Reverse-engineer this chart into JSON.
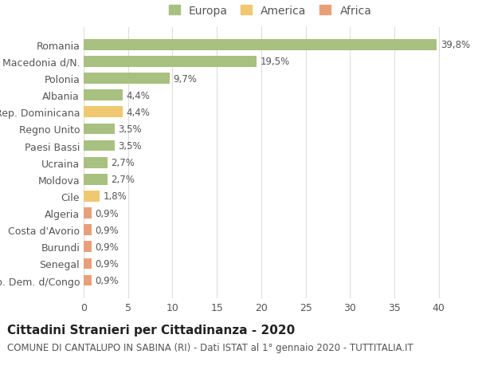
{
  "categories": [
    "Rep. Dem. d/Congo",
    "Senegal",
    "Burundi",
    "Costa d'Avorio",
    "Algeria",
    "Cile",
    "Moldova",
    "Ucraina",
    "Paesi Bassi",
    "Regno Unito",
    "Rep. Dominicana",
    "Albania",
    "Polonia",
    "Macedonia d/N.",
    "Romania"
  ],
  "values": [
    0.9,
    0.9,
    0.9,
    0.9,
    0.9,
    1.8,
    2.7,
    2.7,
    3.5,
    3.5,
    4.4,
    4.4,
    9.7,
    19.5,
    39.8
  ],
  "labels": [
    "0,9%",
    "0,9%",
    "0,9%",
    "0,9%",
    "0,9%",
    "1,8%",
    "2,7%",
    "2,7%",
    "3,5%",
    "3,5%",
    "4,4%",
    "4,4%",
    "9,7%",
    "19,5%",
    "39,8%"
  ],
  "colors": [
    "#e8a07a",
    "#e8a07a",
    "#e8a07a",
    "#e8a07a",
    "#e8a07a",
    "#f0c870",
    "#a8c080",
    "#a8c080",
    "#a8c080",
    "#a8c080",
    "#f0c870",
    "#a8c080",
    "#a8c080",
    "#a8c080",
    "#a8c080"
  ],
  "legend_labels": [
    "Europa",
    "America",
    "Africa"
  ],
  "legend_colors": [
    "#a8c080",
    "#f0c870",
    "#e8a07a"
  ],
  "title": "Cittadini Stranieri per Cittadinanza - 2020",
  "subtitle": "COMUNE DI CANTALUPO IN SABINA (RI) - Dati ISTAT al 1° gennaio 2020 - TUTTITALIA.IT",
  "xlim": [
    0,
    42
  ],
  "xticks": [
    0,
    5,
    10,
    15,
    20,
    25,
    30,
    35,
    40
  ],
  "background_color": "#ffffff",
  "grid_color": "#dddddd",
  "bar_height": 0.65,
  "title_fontsize": 11,
  "subtitle_fontsize": 8.5,
  "tick_fontsize": 9,
  "label_fontsize": 8.5,
  "legend_fontsize": 10
}
